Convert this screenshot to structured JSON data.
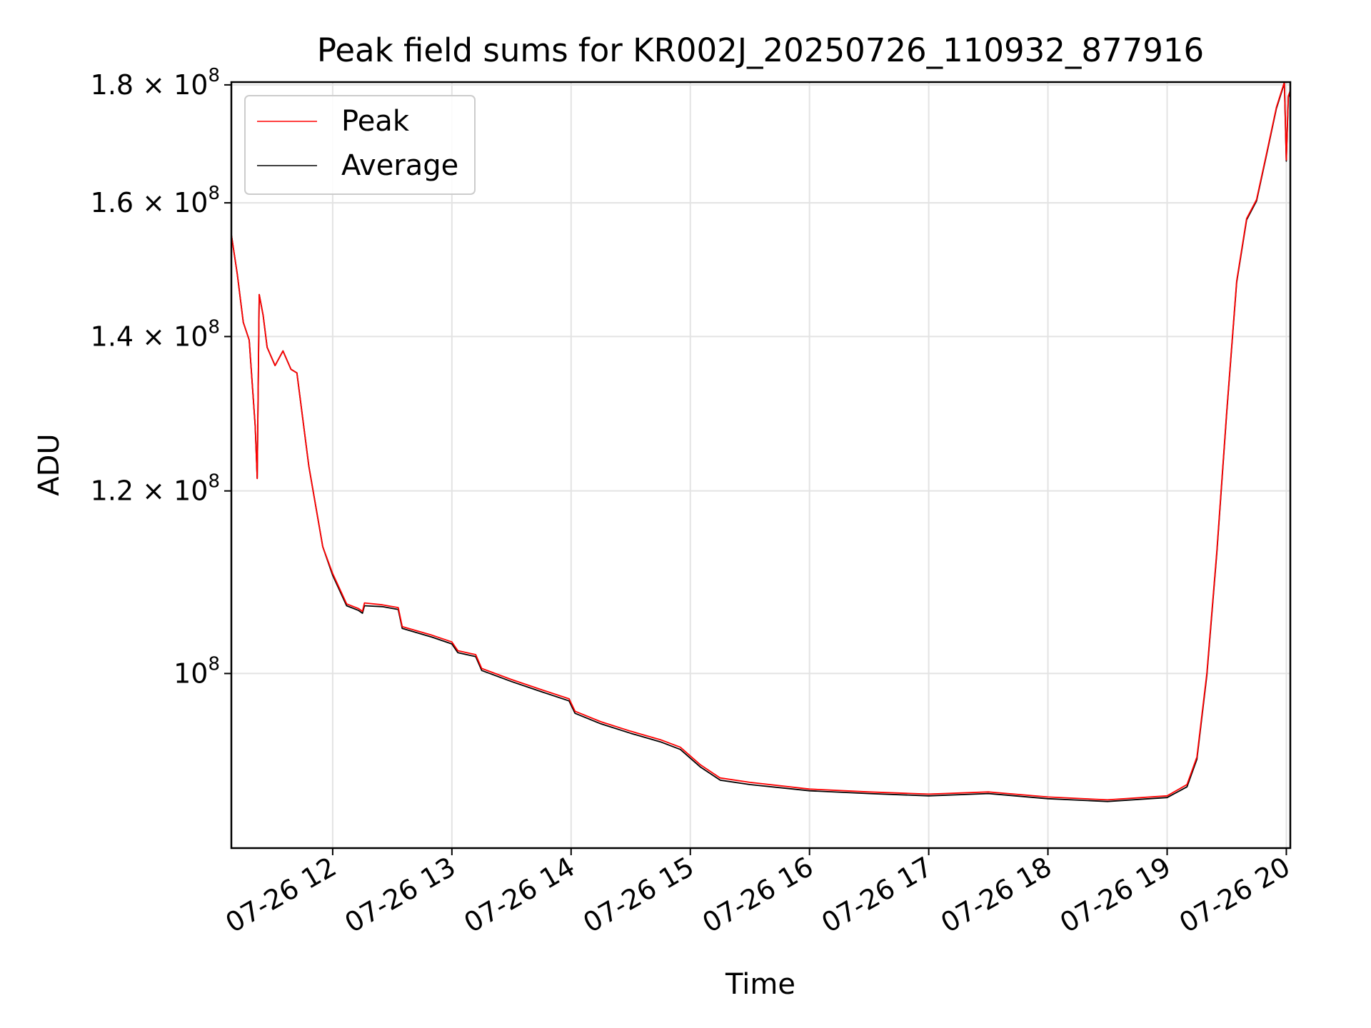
{
  "chart_data": {
    "type": "line",
    "title": "Peak field sums for KR002J_20250726_110932_877916",
    "xlabel": "Time",
    "ylabel": "ADU",
    "y_scale": "log",
    "grid": true,
    "legend_placement": "top-left",
    "xlim": [
      "2025-07-26 11:09",
      "2025-07-26 20:02"
    ],
    "ylim": [
      84000000,
      180500000
    ],
    "x_ticks": [
      {
        "value": "2025-07-26 12:00",
        "label": "07-26 12"
      },
      {
        "value": "2025-07-26 13:00",
        "label": "07-26 13"
      },
      {
        "value": "2025-07-26 14:00",
        "label": "07-26 14"
      },
      {
        "value": "2025-07-26 15:00",
        "label": "07-26 15"
      },
      {
        "value": "2025-07-26 16:00",
        "label": "07-26 16"
      },
      {
        "value": "2025-07-26 17:00",
        "label": "07-26 17"
      },
      {
        "value": "2025-07-26 18:00",
        "label": "07-26 18"
      },
      {
        "value": "2025-07-26 19:00",
        "label": "07-26 19"
      },
      {
        "value": "2025-07-26 20:00",
        "label": "07-26 20"
      }
    ],
    "y_ticks": [
      {
        "value": 100000000,
        "mantissa": "",
        "exponent": "8"
      },
      {
        "value": 120000000,
        "mantissa": "1.2",
        "exponent": "8"
      },
      {
        "value": 140000000,
        "mantissa": "1.4",
        "exponent": "8"
      },
      {
        "value": 160000000,
        "mantissa": "1.6",
        "exponent": "8"
      },
      {
        "value": 180000000,
        "mantissa": "1.8",
        "exponent": "8"
      }
    ],
    "series": [
      {
        "name": "Peak",
        "color": "#ff0000",
        "points": [
          [
            "2025-07-26 11:09",
            155000000
          ],
          [
            "2025-07-26 11:12",
            149000000
          ],
          [
            "2025-07-26 11:15",
            142000000
          ],
          [
            "2025-07-26 11:18",
            139500000
          ],
          [
            "2025-07-26 11:21",
            128000000
          ],
          [
            "2025-07-26 11:22",
            121500000
          ],
          [
            "2025-07-26 11:23",
            146000000
          ],
          [
            "2025-07-26 11:25",
            143000000
          ],
          [
            "2025-07-26 11:27",
            138500000
          ],
          [
            "2025-07-26 11:31",
            136000000
          ],
          [
            "2025-07-26 11:35",
            138000000
          ],
          [
            "2025-07-26 11:39",
            135500000
          ],
          [
            "2025-07-26 11:42",
            135000000
          ],
          [
            "2025-07-26 11:48",
            123000000
          ],
          [
            "2025-07-26 11:55",
            113500000
          ],
          [
            "2025-07-26 12:00",
            110500000
          ],
          [
            "2025-07-26 12:07",
            107200000
          ],
          [
            "2025-07-26 12:13",
            106700000
          ],
          [
            "2025-07-26 12:15",
            106400000
          ],
          [
            "2025-07-26 12:16",
            107300000
          ],
          [
            "2025-07-26 12:25",
            107100000
          ],
          [
            "2025-07-26 12:33",
            106800000
          ],
          [
            "2025-07-26 12:35",
            104800000
          ],
          [
            "2025-07-26 12:50",
            103900000
          ],
          [
            "2025-07-26 13:00",
            103200000
          ],
          [
            "2025-07-26 13:03",
            102300000
          ],
          [
            "2025-07-26 13:12",
            101900000
          ],
          [
            "2025-07-26 13:15",
            100500000
          ],
          [
            "2025-07-26 13:30",
            99400000
          ],
          [
            "2025-07-26 13:45",
            98400000
          ],
          [
            "2025-07-26 13:59",
            97500000
          ],
          [
            "2025-07-26 14:02",
            96300000
          ],
          [
            "2025-07-26 14:15",
            95300000
          ],
          [
            "2025-07-26 14:30",
            94400000
          ],
          [
            "2025-07-26 14:45",
            93600000
          ],
          [
            "2025-07-26 14:55",
            92900000
          ],
          [
            "2025-07-26 15:05",
            91300000
          ],
          [
            "2025-07-26 15:15",
            90100000
          ],
          [
            "2025-07-26 15:30",
            89700000
          ],
          [
            "2025-07-26 16:00",
            89100000
          ],
          [
            "2025-07-26 16:30",
            88850000
          ],
          [
            "2025-07-26 17:00",
            88650000
          ],
          [
            "2025-07-26 17:30",
            88850000
          ],
          [
            "2025-07-26 18:00",
            88400000
          ],
          [
            "2025-07-26 18:30",
            88150000
          ],
          [
            "2025-07-26 19:00",
            88500000
          ],
          [
            "2025-07-26 19:10",
            89500000
          ],
          [
            "2025-07-26 19:15",
            92000000
          ],
          [
            "2025-07-26 19:20",
            100000000
          ],
          [
            "2025-07-26 19:25",
            113000000
          ],
          [
            "2025-07-26 19:30",
            130000000
          ],
          [
            "2025-07-26 19:35",
            148000000
          ],
          [
            "2025-07-26 19:40",
            157500000
          ],
          [
            "2025-07-26 19:45",
            160500000
          ],
          [
            "2025-07-26 19:50",
            168000000
          ],
          [
            "2025-07-26 19:55",
            176000000
          ],
          [
            "2025-07-26 19:59",
            180500000
          ],
          [
            "2025-07-26 20:00",
            167000000
          ],
          [
            "2025-07-26 20:01",
            178000000
          ],
          [
            "2025-07-26 20:02",
            179000000
          ]
        ]
      },
      {
        "name": "Average",
        "color": "#000000",
        "points": [
          [
            "2025-07-26 11:09",
            155000000
          ],
          [
            "2025-07-26 11:12",
            149000000
          ],
          [
            "2025-07-26 11:15",
            142000000
          ],
          [
            "2025-07-26 11:18",
            139500000
          ],
          [
            "2025-07-26 11:21",
            128000000
          ],
          [
            "2025-07-26 11:22",
            121500000
          ],
          [
            "2025-07-26 11:23",
            146000000
          ],
          [
            "2025-07-26 11:25",
            143000000
          ],
          [
            "2025-07-26 11:27",
            138500000
          ],
          [
            "2025-07-26 11:31",
            136000000
          ],
          [
            "2025-07-26 11:35",
            138000000
          ],
          [
            "2025-07-26 11:39",
            135500000
          ],
          [
            "2025-07-26 11:42",
            135000000
          ],
          [
            "2025-07-26 11:48",
            123000000
          ],
          [
            "2025-07-26 11:55",
            113500000
          ],
          [
            "2025-07-26 12:00",
            110300000
          ],
          [
            "2025-07-26 12:07",
            107000000
          ],
          [
            "2025-07-26 12:13",
            106500000
          ],
          [
            "2025-07-26 12:15",
            106200000
          ],
          [
            "2025-07-26 12:16",
            107000000
          ],
          [
            "2025-07-26 12:25",
            106900000
          ],
          [
            "2025-07-26 12:33",
            106600000
          ],
          [
            "2025-07-26 12:35",
            104600000
          ],
          [
            "2025-07-26 12:50",
            103700000
          ],
          [
            "2025-07-26 13:00",
            103000000
          ],
          [
            "2025-07-26 13:03",
            102100000
          ],
          [
            "2025-07-26 13:12",
            101700000
          ],
          [
            "2025-07-26 13:15",
            100300000
          ],
          [
            "2025-07-26 13:30",
            99200000
          ],
          [
            "2025-07-26 13:45",
            98200000
          ],
          [
            "2025-07-26 13:59",
            97300000
          ],
          [
            "2025-07-26 14:02",
            96100000
          ],
          [
            "2025-07-26 14:15",
            95100000
          ],
          [
            "2025-07-26 14:30",
            94200000
          ],
          [
            "2025-07-26 14:45",
            93400000
          ],
          [
            "2025-07-26 14:55",
            92700000
          ],
          [
            "2025-07-26 15:05",
            91100000
          ],
          [
            "2025-07-26 15:15",
            89900000
          ],
          [
            "2025-07-26 15:30",
            89500000
          ],
          [
            "2025-07-26 16:00",
            88950000
          ],
          [
            "2025-07-26 16:30",
            88700000
          ],
          [
            "2025-07-26 17:00",
            88500000
          ],
          [
            "2025-07-26 17:30",
            88700000
          ],
          [
            "2025-07-26 18:00",
            88250000
          ],
          [
            "2025-07-26 18:30",
            88000000
          ],
          [
            "2025-07-26 19:00",
            88350000
          ],
          [
            "2025-07-26 19:10",
            89300000
          ],
          [
            "2025-07-26 19:15",
            91800000
          ],
          [
            "2025-07-26 19:20",
            99800000
          ],
          [
            "2025-07-26 19:25",
            112800000
          ],
          [
            "2025-07-26 19:30",
            129800000
          ],
          [
            "2025-07-26 19:35",
            147800000
          ],
          [
            "2025-07-26 19:40",
            157300000
          ],
          [
            "2025-07-26 19:45",
            160300000
          ],
          [
            "2025-07-26 19:50",
            167800000
          ],
          [
            "2025-07-26 19:55",
            175800000
          ],
          [
            "2025-07-26 19:59",
            180300000
          ],
          [
            "2025-07-26 20:00",
            166800000
          ],
          [
            "2025-07-26 20:01",
            177800000
          ],
          [
            "2025-07-26 20:02",
            178800000
          ]
        ]
      }
    ]
  }
}
